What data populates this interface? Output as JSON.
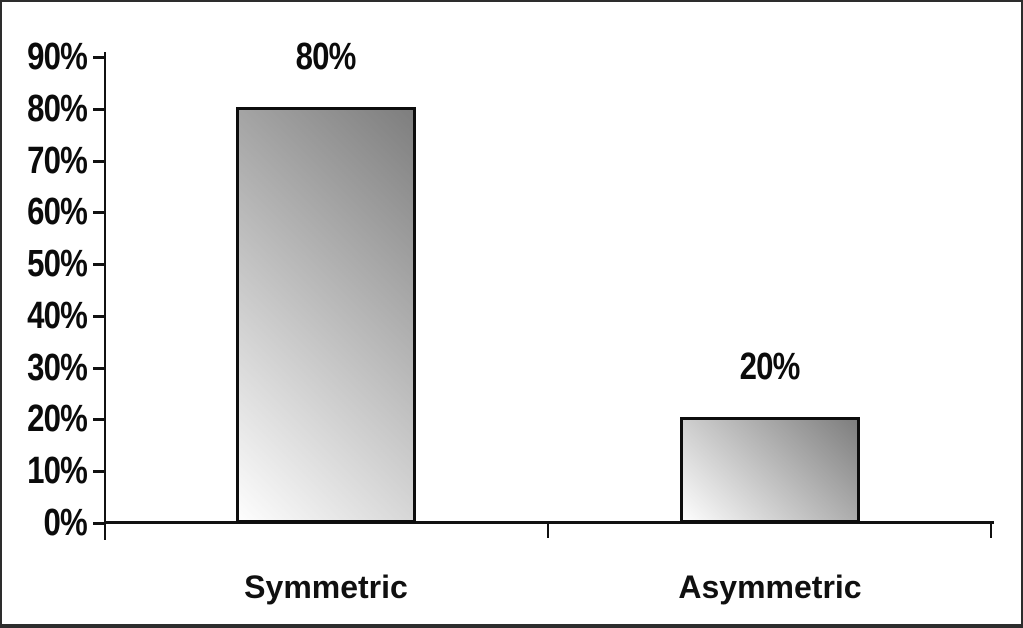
{
  "chart_data": {
    "type": "bar",
    "categories": [
      "Symmetric",
      "Asymmetric"
    ],
    "values": [
      80,
      20
    ],
    "bar_labels": [
      "80%",
      "20%"
    ],
    "ytick_labels": [
      "90%",
      "80%",
      "70%",
      "60%",
      "50%",
      "40%",
      "30%",
      "20%",
      "10%",
      "0%"
    ],
    "ytick_values": [
      90,
      80,
      70,
      60,
      50,
      40,
      30,
      20,
      10,
      0
    ],
    "ylim": [
      0,
      90
    ],
    "title": "",
    "xlabel": "",
    "ylabel": "",
    "grid": false,
    "legend": null,
    "colors": {
      "bar_gradient_light": "#fdfdfd",
      "bar_gradient_dark": "#7e7e7e",
      "bar_border": "#0d0d0d",
      "axis": "#111111",
      "text": "#0b0b0b",
      "background": "#ffffff",
      "frame": "#2d2d2d"
    }
  }
}
